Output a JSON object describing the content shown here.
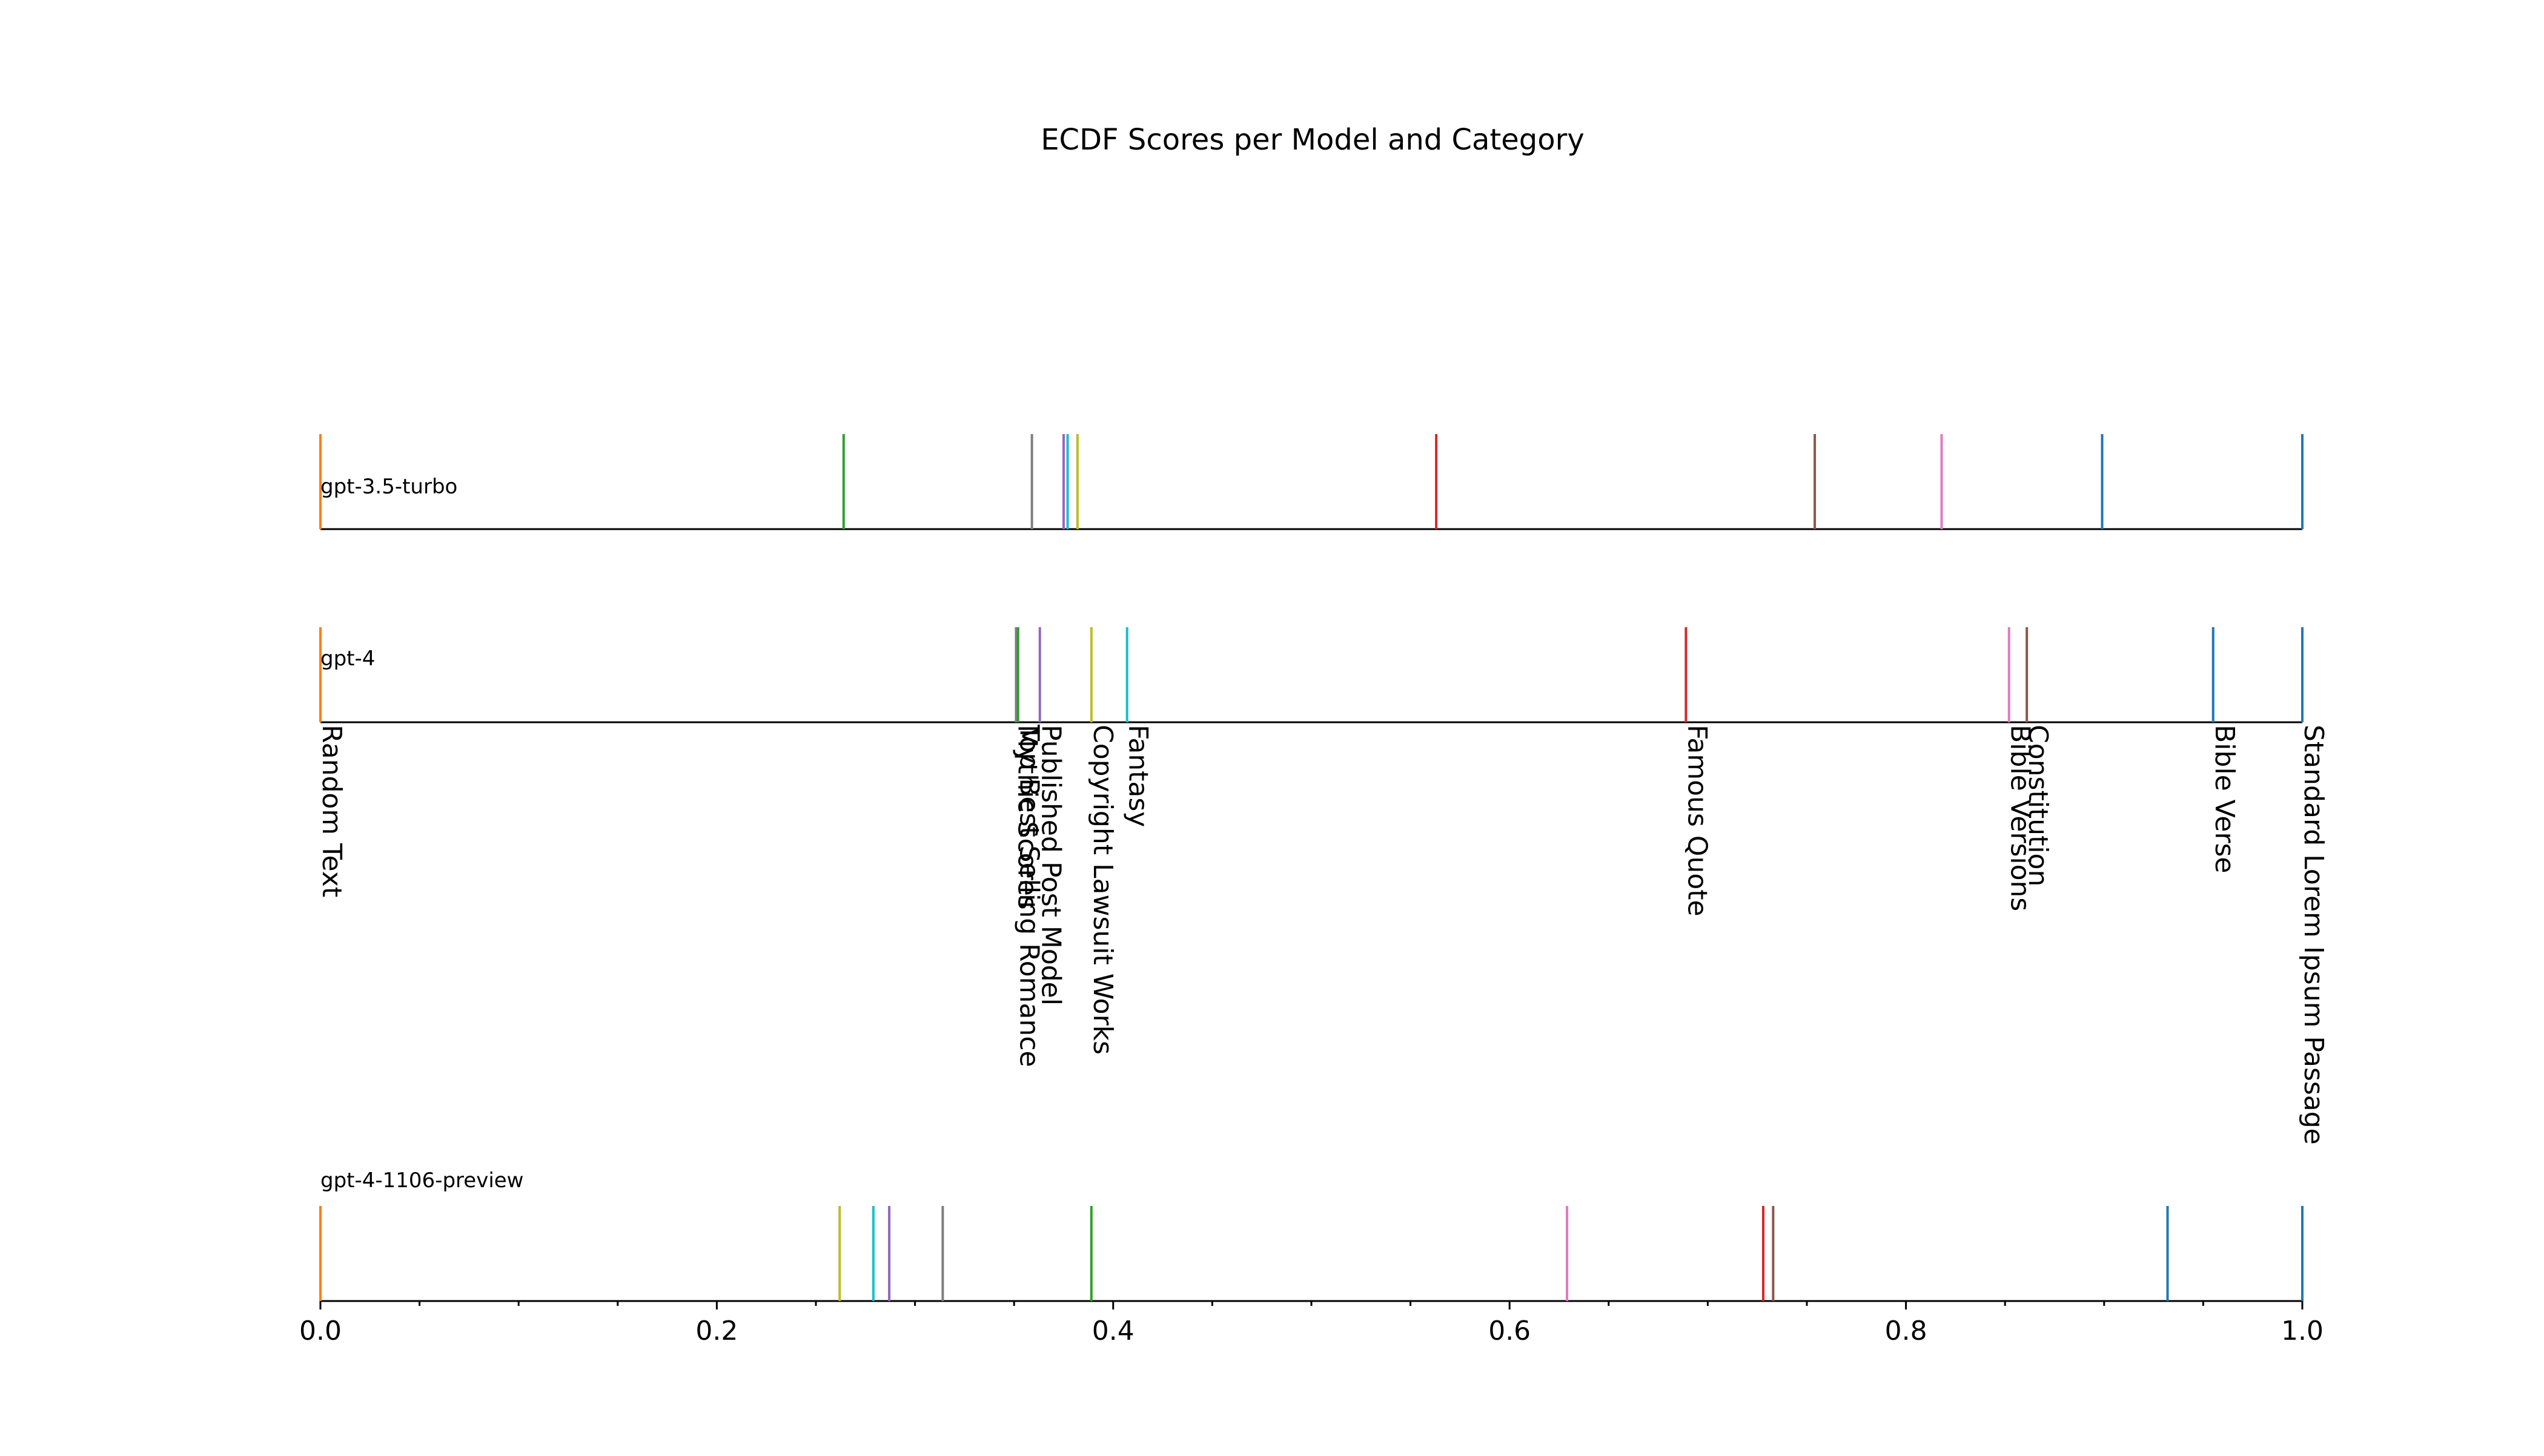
{
  "chart_data": {
    "type": "ecdf-rug",
    "title": "ECDF Scores per Model and Category",
    "xlim": [
      0,
      1
    ],
    "x_ticks": [
      "0.0",
      "0.2",
      "0.4",
      "0.6",
      "0.8",
      "1.0"
    ],
    "series_colors": {
      "Random Text": "#ff7f0e",
      "Standard Lorem Ipsum Passage": "#1f77b4",
      "Bible Verse": "#1f77b4",
      "Bible Versions": "#e377c2",
      "Constitution": "#8c564b",
      "Famous Quote": "#d62728",
      "Fantasy": "#17becf",
      "Copyright Lawsuit Works": "#bcbd22",
      "Published Post Model": "#9467bd",
      "Mythic Scores": "#2ca02c",
      "Top Best Selling Romance": "#7f7f7f"
    },
    "models": [
      {
        "name": "gpt-3.5-turbo",
        "points": [
          {
            "category": "Random Text",
            "x": 0.0
          },
          {
            "category": "Mythic Scores",
            "x": 0.264
          },
          {
            "category": "Top Best Selling Romance",
            "x": 0.359
          },
          {
            "category": "Published Post Model",
            "x": 0.375
          },
          {
            "category": "Fantasy",
            "x": 0.377
          },
          {
            "category": "Copyright Lawsuit Works",
            "x": 0.382
          },
          {
            "category": "Famous Quote",
            "x": 0.563
          },
          {
            "category": "Constitution",
            "x": 0.754
          },
          {
            "category": "Bible Versions",
            "x": 0.818
          },
          {
            "category": "Bible Verse",
            "x": 0.899
          },
          {
            "category": "Standard Lorem Ipsum Passage",
            "x": 1.0
          }
        ]
      },
      {
        "name": "gpt-4",
        "points": [
          {
            "category": "Random Text",
            "x": 0.0
          },
          {
            "category": "Top Best Selling Romance",
            "x": 0.351
          },
          {
            "category": "Mythic Scores",
            "x": 0.352
          },
          {
            "category": "Published Post Model",
            "x": 0.363
          },
          {
            "category": "Copyright Lawsuit Works",
            "x": 0.389
          },
          {
            "category": "Fantasy",
            "x": 0.407
          },
          {
            "category": "Famous Quote",
            "x": 0.689
          },
          {
            "category": "Bible Versions",
            "x": 0.852
          },
          {
            "category": "Constitution",
            "x": 0.861
          },
          {
            "category": "Bible Verse",
            "x": 0.955
          },
          {
            "category": "Standard Lorem Ipsum Passage",
            "x": 1.0
          }
        ],
        "labels": [
          {
            "text": "Random Text",
            "x": 0.0
          },
          {
            "text": "Mythic Scores",
            "x": 0.351
          },
          {
            "text": "Top Best Selling Romance",
            "x": 0.352
          },
          {
            "text": "Published Post Model",
            "x": 0.363
          },
          {
            "text": "Copyright Lawsuit Works",
            "x": 0.389
          },
          {
            "text": "Fantasy",
            "x": 0.407
          },
          {
            "text": "Famous Quote",
            "x": 0.689
          },
          {
            "text": "Bible Versions",
            "x": 0.852
          },
          {
            "text": "Constitution",
            "x": 0.861
          },
          {
            "text": "Bible Verse",
            "x": 0.955
          },
          {
            "text": "Standard Lorem Ipsum Passage",
            "x": 1.0
          }
        ]
      },
      {
        "name": "gpt-4-1106-preview",
        "points": [
          {
            "category": "Random Text",
            "x": 0.0
          },
          {
            "category": "Copyright Lawsuit Works",
            "x": 0.262
          },
          {
            "category": "Fantasy",
            "x": 0.279
          },
          {
            "category": "Published Post Model",
            "x": 0.287
          },
          {
            "category": "Top Best Selling Romance",
            "x": 0.314
          },
          {
            "category": "Mythic Scores",
            "x": 0.389
          },
          {
            "category": "Bible Versions",
            "x": 0.629
          },
          {
            "category": "Famous Quote",
            "x": 0.728
          },
          {
            "category": "Constitution",
            "x": 0.733
          },
          {
            "category": "Bible Verse",
            "x": 0.932
          },
          {
            "category": "Standard Lorem Ipsum Passage",
            "x": 1.0
          }
        ]
      }
    ]
  }
}
